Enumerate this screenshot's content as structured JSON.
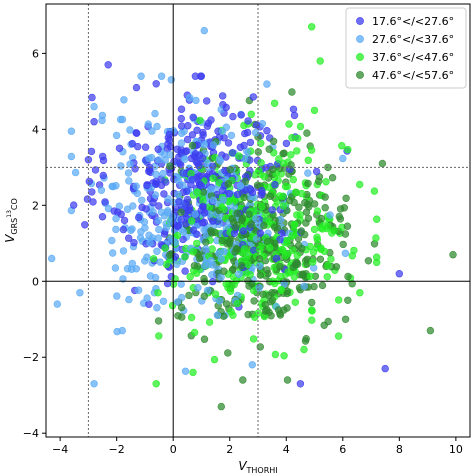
{
  "chart_data": {
    "type": "scatter",
    "title": "",
    "xlabel": "V",
    "xlabel_sub": "THORHI",
    "ylabel": "V",
    "ylabel_sub": "GRS",
    "ylabel_sup": "13",
    "ylabel_sub2": "CO",
    "xlim": [
      -4.5,
      10.5
    ],
    "ylim": [
      -4.1,
      7.3
    ],
    "xticks": [
      -4,
      -2,
      0,
      2,
      4,
      6,
      8,
      10
    ],
    "yticks": [
      -4,
      -2,
      0,
      2,
      4,
      6
    ],
    "xtick_labels": [
      "−4",
      "−2",
      "0",
      "2",
      "4",
      "6",
      "8",
      "10"
    ],
    "ytick_labels": [
      "−4",
      "−2",
      "0",
      "2",
      "4",
      "6"
    ],
    "reference_lines": {
      "solid_x": 0,
      "solid_y": 0,
      "dotted_x": [
        -3,
        3
      ],
      "dotted_y": 3
    },
    "legend_position": "top-right",
    "series": [
      {
        "name": "17.6°<l<27.6°",
        "label": "17.6°</<27.6°",
        "color": "#3d3df0",
        "center": [
          1.0,
          2.5
        ],
        "spread": [
          1.6,
          1.2
        ],
        "points": [
          [
            -2.3,
            5.7
          ],
          [
            -1.3,
            5.1
          ],
          [
            -0.6,
            5.2
          ],
          [
            -2.8,
            4.2
          ],
          [
            -1.9,
            3.5
          ],
          [
            0.5,
            4.9
          ],
          [
            -3.0,
            3.2
          ],
          [
            7.5,
            -2.3
          ],
          [
            4.5,
            -2.7
          ],
          [
            -2.5,
            1.7
          ],
          [
            8.0,
            0.2
          ]
        ]
      },
      {
        "name": "27.6°<l<37.6°",
        "label": "27.6°</<37.6°",
        "color": "#5aaaf5",
        "center": [
          0.8,
          1.9
        ],
        "spread": [
          1.8,
          1.3
        ],
        "points": [
          [
            1.1,
            6.6
          ],
          [
            -2.8,
            4.6
          ],
          [
            -4.1,
            -0.6
          ],
          [
            -2.8,
            -2.7
          ],
          [
            -4.3,
            0.6
          ],
          [
            -3.3,
            -0.3
          ],
          [
            -1.8,
            -1.3
          ],
          [
            2.8,
            -2.2
          ]
        ]
      },
      {
        "name": "37.6°<l<47.6°",
        "label": "37.6°</<47.6°",
        "color": "#22ee22",
        "center": [
          3.0,
          1.3
        ],
        "spread": [
          1.6,
          1.2
        ],
        "points": [
          [
            4.9,
            6.7
          ],
          [
            5.2,
            5.8
          ],
          [
            5.0,
            4.5
          ],
          [
            -0.6,
            -2.7
          ],
          [
            0.7,
            -2.4
          ],
          [
            6.6,
            -0.3
          ],
          [
            2.5,
            4.1
          ]
        ]
      },
      {
        "name": "47.6°<l<57.6°",
        "label": "47.6°</<57.6°",
        "color": "#2e8b2e",
        "center": [
          3.2,
          1.0
        ],
        "spread": [
          1.5,
          1.2
        ],
        "points": [
          [
            9.1,
            -1.3
          ],
          [
            9.9,
            0.7
          ],
          [
            7.4,
            3.1
          ],
          [
            1.7,
            -3.3
          ],
          [
            6.1,
            -1.0
          ]
        ]
      }
    ],
    "points_per_series": 360
  }
}
